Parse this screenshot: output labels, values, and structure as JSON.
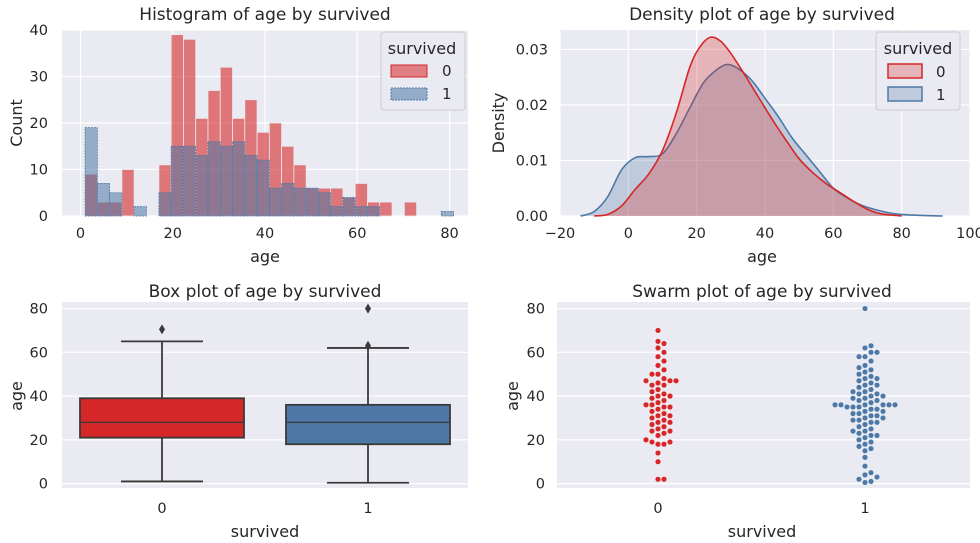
{
  "colors": {
    "survived_0": "#d62728",
    "survived_1": "#4e79a7",
    "background": "#eaeaf2"
  },
  "chart_data": [
    {
      "type": "histogram",
      "title": "Histogram of age by survived",
      "xlabel": "age",
      "ylabel": "Count",
      "xlim": [
        -4,
        84
      ],
      "ylim": [
        0,
        40
      ],
      "xticks": [
        "0",
        "20",
        "40",
        "60",
        "80"
      ],
      "yticks": [
        "0",
        "10",
        "20",
        "30",
        "40"
      ],
      "legend": {
        "title": "survived",
        "position": "top-right",
        "labels": [
          "0",
          "1"
        ]
      },
      "bin_width": 2.66,
      "series": [
        {
          "name": "0",
          "bins": [
            [
              1,
              9
            ],
            [
              3.66,
              3
            ],
            [
              6.32,
              3
            ],
            [
              8.98,
              10
            ],
            [
              17,
              11
            ],
            [
              19.66,
              39
            ],
            [
              22.32,
              38
            ],
            [
              24.98,
              21
            ],
            [
              27.64,
              27
            ],
            [
              30.3,
              32
            ],
            [
              32.96,
              21
            ],
            [
              35.62,
              25
            ],
            [
              38.28,
              18
            ],
            [
              40.94,
              20
            ],
            [
              43.6,
              15
            ],
            [
              46.26,
              11
            ],
            [
              48.92,
              6
            ],
            [
              51.58,
              6
            ],
            [
              54.24,
              6
            ],
            [
              56.9,
              4
            ],
            [
              59.56,
              7
            ],
            [
              62.22,
              3
            ],
            [
              64.88,
              3
            ],
            [
              70.2,
              3
            ]
          ]
        },
        {
          "name": "1",
          "bins": [
            [
              1,
              19
            ],
            [
              3.66,
              7
            ],
            [
              6.32,
              5
            ],
            [
              11.64,
              2
            ],
            [
              17,
              5
            ],
            [
              19.66,
              15
            ],
            [
              22.32,
              15
            ],
            [
              24.98,
              13
            ],
            [
              27.64,
              16
            ],
            [
              30.3,
              15
            ],
            [
              32.96,
              16
            ],
            [
              35.62,
              13
            ],
            [
              38.28,
              12
            ],
            [
              40.94,
              6
            ],
            [
              43.6,
              7
            ],
            [
              46.26,
              6
            ],
            [
              48.92,
              6
            ],
            [
              51.58,
              5
            ],
            [
              54.24,
              2
            ],
            [
              56.9,
              4
            ],
            [
              59.56,
              2
            ],
            [
              62.22,
              2
            ],
            [
              78.2,
              1
            ]
          ]
        }
      ]
    },
    {
      "type": "area",
      "title": "Density plot of age by survived",
      "xlabel": "age",
      "ylabel": "Density",
      "xlim": [
        -20,
        100
      ],
      "ylim": [
        0,
        0.0335
      ],
      "xticks": [
        "−20",
        "0",
        "20",
        "40",
        "60",
        "80",
        "100"
      ],
      "yticks": [
        "0.00",
        "0.01",
        "0.02",
        "0.03"
      ],
      "legend": {
        "title": "survived",
        "position": "top-right",
        "labels": [
          "0",
          "1"
        ]
      },
      "series": [
        {
          "name": "0",
          "points": [
            [
              -10,
              0
            ],
            [
              -6,
              0.0003
            ],
            [
              -2,
              0.0018
            ],
            [
              2,
              0.0048
            ],
            [
              6,
              0.0076
            ],
            [
              10,
              0.0118
            ],
            [
              14,
              0.0185
            ],
            [
              18,
              0.0268
            ],
            [
              21,
              0.0305
            ],
            [
              24,
              0.0322
            ],
            [
              27,
              0.0315
            ],
            [
              30,
              0.0293
            ],
            [
              34,
              0.0255
            ],
            [
              38,
              0.0215
            ],
            [
              42,
              0.0175
            ],
            [
              46,
              0.0138
            ],
            [
              50,
              0.0103
            ],
            [
              54,
              0.0078
            ],
            [
              58,
              0.0058
            ],
            [
              62,
              0.0042
            ],
            [
              66,
              0.0026
            ],
            [
              70,
              0.0012
            ],
            [
              74,
              0.0004
            ],
            [
              80,
              0
            ]
          ]
        },
        {
          "name": "1",
          "points": [
            [
              -14,
              0
            ],
            [
              -10,
              0.0008
            ],
            [
              -6,
              0.0035
            ],
            [
              -2,
              0.0083
            ],
            [
              2,
              0.0105
            ],
            [
              6,
              0.0107
            ],
            [
              10,
              0.0112
            ],
            [
              14,
              0.0148
            ],
            [
              18,
              0.0195
            ],
            [
              22,
              0.024
            ],
            [
              26,
              0.0264
            ],
            [
              29,
              0.0273
            ],
            [
              32,
              0.0266
            ],
            [
              36,
              0.0245
            ],
            [
              40,
              0.0212
            ],
            [
              44,
              0.0178
            ],
            [
              48,
              0.014
            ],
            [
              52,
              0.011
            ],
            [
              56,
              0.008
            ],
            [
              60,
              0.005
            ],
            [
              64,
              0.0033
            ],
            [
              68,
              0.002
            ],
            [
              72,
              0.0012
            ],
            [
              78,
              0.0004
            ],
            [
              86,
              0.0001
            ],
            [
              92,
              0
            ]
          ]
        }
      ]
    },
    {
      "type": "box",
      "title": "Box plot of age by survived",
      "xlabel": "survived",
      "ylabel": "age",
      "ylim": [
        -2,
        83
      ],
      "yticks": [
        "0",
        "20",
        "40",
        "60",
        "80"
      ],
      "categories": [
        "0",
        "1"
      ],
      "boxes": [
        {
          "name": "0",
          "whisker_low": 1,
          "q1": 21,
          "median": 28,
          "q3": 39,
          "whisker_high": 65,
          "outliers": [
            70.5
          ]
        },
        {
          "name": "1",
          "whisker_low": 0.4,
          "q1": 18,
          "median": 28,
          "q3": 36,
          "whisker_high": 62,
          "outliers": [
            63,
            80
          ]
        }
      ]
    },
    {
      "type": "scatter",
      "title": "Swarm plot of age by survived",
      "xlabel": "survived",
      "ylabel": "age",
      "ylim": [
        -2,
        83
      ],
      "yticks": [
        "0",
        "20",
        "40",
        "60",
        "80"
      ],
      "categories": [
        "0",
        "1"
      ],
      "series": [
        {
          "name": "0",
          "values": [
            2,
            2,
            10,
            14,
            18,
            18,
            19,
            19,
            20,
            22,
            23,
            24,
            24,
            25,
            26,
            27,
            28,
            28,
            29,
            30,
            31,
            31,
            32,
            33,
            34,
            35,
            35,
            36,
            36,
            37,
            38,
            39,
            40,
            40,
            41,
            42,
            43,
            45,
            45,
            46,
            47,
            47,
            47,
            48,
            50,
            50,
            52,
            54,
            56,
            58,
            60,
            62,
            64,
            65,
            70
          ]
        },
        {
          "name": "1",
          "values": [
            0.5,
            1,
            2,
            3,
            4,
            5,
            8,
            12,
            15,
            16,
            17,
            18,
            19,
            20,
            21,
            22,
            22,
            23,
            24,
            24,
            25,
            26,
            27,
            28,
            28,
            29,
            29,
            30,
            30,
            31,
            31,
            32,
            32,
            33,
            33,
            34,
            34,
            35,
            35,
            35,
            36,
            36,
            36,
            36,
            36,
            36,
            37,
            38,
            38,
            39,
            39,
            40,
            40,
            41,
            41,
            42,
            42,
            43,
            44,
            45,
            45,
            46,
            47,
            48,
            48,
            49,
            50,
            51,
            52,
            53,
            54,
            56,
            58,
            58,
            60,
            60,
            62,
            63,
            80
          ]
        }
      ]
    }
  ]
}
